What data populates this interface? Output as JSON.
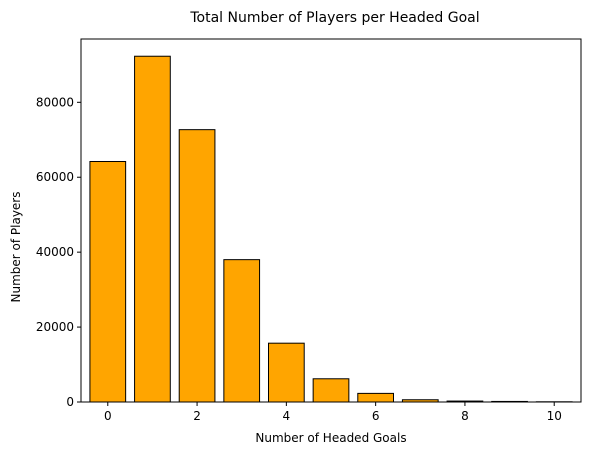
{
  "chart_data": {
    "type": "bar",
    "title": "Total Number of Players per Headed Goal",
    "xlabel": "Number of Headed Goals",
    "ylabel": "Number of Players",
    "x": [
      0,
      1,
      2,
      3,
      4,
      5,
      6,
      7,
      8,
      9,
      10
    ],
    "values": [
      64200,
      92300,
      72700,
      38000,
      15700,
      6200,
      2300,
      600,
      250,
      150,
      60
    ],
    "xlim": [
      -0.6,
      10.6
    ],
    "ylim": [
      0,
      96900
    ],
    "xticks": [
      0,
      2,
      4,
      6,
      8,
      10
    ],
    "yticks": [
      0,
      20000,
      40000,
      60000,
      80000
    ],
    "xtick_labels": [
      "0",
      "2",
      "4",
      "6",
      "8",
      "10"
    ],
    "ytick_labels": [
      "0",
      "20000",
      "40000",
      "60000",
      "80000"
    ],
    "grid": false,
    "bar_color": "#ffa500",
    "edge_color": "#000000"
  }
}
